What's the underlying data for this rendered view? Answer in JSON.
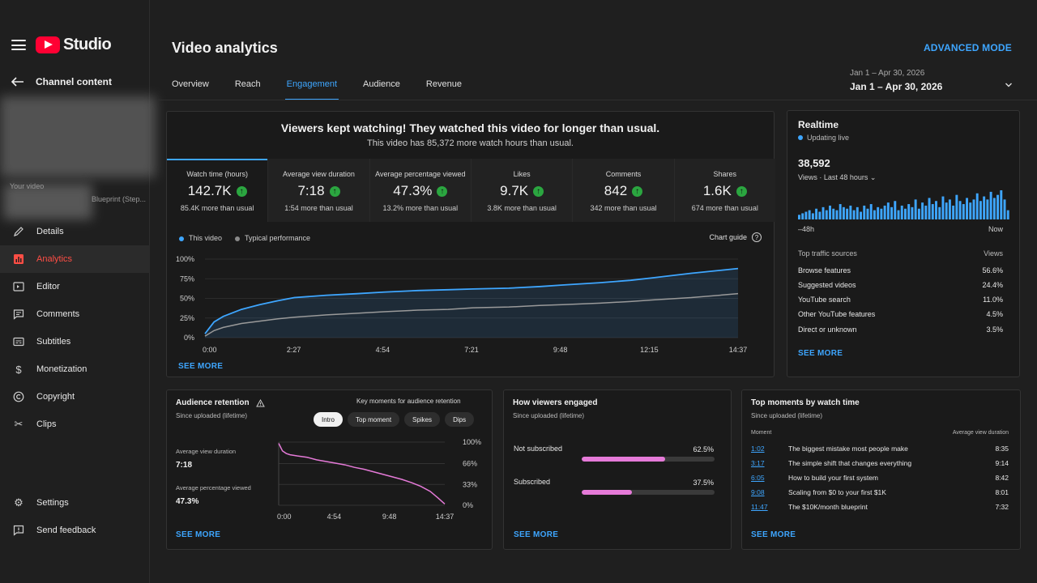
{
  "app": {
    "logo_text": "Studio"
  },
  "sidebar": {
    "back_label": "Channel content",
    "blurred_texts": [
      "Your video",
      "Blueprint (Step..."
    ],
    "items": [
      {
        "label": "Details",
        "icon": "pencil-icon"
      },
      {
        "label": "Analytics",
        "icon": "analytics-icon"
      },
      {
        "label": "Editor",
        "icon": "editor-icon"
      },
      {
        "label": "Comments",
        "icon": "comments-icon"
      },
      {
        "label": "Subtitles",
        "icon": "subtitles-icon"
      },
      {
        "label": "Monetization",
        "icon": "dollar-icon"
      },
      {
        "label": "Copyright",
        "icon": "copyright-icon"
      },
      {
        "label": "Clips",
        "icon": "scissors-icon"
      }
    ],
    "bottom_items": [
      {
        "label": "Settings",
        "icon": "gear-icon"
      },
      {
        "label": "Send feedback",
        "icon": "feedback-icon"
      }
    ]
  },
  "header": {
    "title": "Video analytics",
    "advanced_mode": "ADVANCED MODE",
    "date_small": "Jan 1 – Apr 30, 2026",
    "date_main": "Jan 1 – Apr 30, 2026",
    "tabs": [
      "Overview",
      "Reach",
      "Engagement",
      "Audience",
      "Revenue"
    ],
    "active_tab": "Engagement"
  },
  "main": {
    "headline": "Viewers kept watching! They watched this video for longer than usual.",
    "subline": "This video has 85,372 more watch hours than usual.",
    "metrics": [
      {
        "label": "Watch time (hours)",
        "value": "142.7K",
        "note": "85.4K more than usual"
      },
      {
        "label": "Average view duration",
        "value": "7:18",
        "note": "1:54 more than usual"
      },
      {
        "label": "Average percentage viewed",
        "value": "47.3%",
        "note": "13.2% more than usual"
      },
      {
        "label": "Likes",
        "value": "9.7K",
        "note": "3.8K more than usual"
      },
      {
        "label": "Comments",
        "value": "842",
        "note": "342 more than usual"
      },
      {
        "label": "Shares",
        "value": "1.6K",
        "note": "674 more than usual"
      }
    ],
    "legend_this": "This video",
    "legend_typical": "Typical performance",
    "chart_guide": "Chart guide",
    "see_more": "SEE MORE"
  },
  "realtime": {
    "title": "Realtime",
    "live": "Updating live",
    "count": "38,592",
    "views_label": "Views · Last 48 hours",
    "left_label": "–48h",
    "right_label": "Now",
    "sources_header": "Top traffic sources",
    "views_header": "Views",
    "sources": [
      {
        "name": "Browse features",
        "value": "56.6%"
      },
      {
        "name": "Suggested videos",
        "value": "24.4%"
      },
      {
        "name": "YouTube search",
        "value": "11.0%"
      },
      {
        "name": "Other YouTube features",
        "value": "4.5%"
      },
      {
        "name": "Direct or unknown",
        "value": "3.5%"
      }
    ],
    "bars": [
      3,
      4,
      5,
      6,
      4,
      7,
      5,
      8,
      6,
      9,
      7,
      6,
      10,
      8,
      7,
      9,
      6,
      8,
      5,
      9,
      7,
      10,
      6,
      8,
      7,
      9,
      11,
      8,
      12,
      6,
      9,
      7,
      10,
      8,
      13,
      7,
      11,
      9,
      14,
      10,
      12,
      8,
      15,
      11,
      13,
      9,
      16,
      12,
      10,
      14,
      11,
      13,
      17,
      12,
      15,
      13,
      18,
      14,
      16,
      19,
      13,
      6
    ]
  },
  "retention": {
    "title": "Audience retention",
    "subtitle": "Since uploaded (lifetime)",
    "key_moments_label": "Key moments for audience retention",
    "pills": [
      "Intro",
      "Top moment",
      "Spikes",
      "Dips"
    ],
    "avd_label": "Average view duration",
    "avd_value": "7:18",
    "apv_label": "Average percentage viewed",
    "apv_value": "47.3%",
    "see_more": "SEE MORE"
  },
  "engaged": {
    "title": "How viewers engaged",
    "subtitle": "Since uploaded (lifetime)",
    "rows": [
      {
        "label": "Not subscribed",
        "pct": "62.5%",
        "value": 62.5
      },
      {
        "label": "Subscribed",
        "pct": "37.5%",
        "value": 37.5
      }
    ],
    "see_more": "SEE MORE"
  },
  "moments": {
    "title": "Top moments by watch time",
    "subtitle": "Since uploaded (lifetime)",
    "col_moment": "Moment",
    "col_avd": "Average view duration",
    "rows": [
      {
        "time": "1:02",
        "text": "The biggest mistake most people make",
        "value": "8:35"
      },
      {
        "time": "3:17",
        "text": "The simple shift that changes everything",
        "value": "9:14"
      },
      {
        "time": "6:05",
        "text": "How to build your first system",
        "value": "8:42"
      },
      {
        "time": "9:08",
        "text": "Scaling from $0 to your first $1K",
        "value": "8:01"
      },
      {
        "time": "11:47",
        "text": "The $10K/month blueprint",
        "value": "7:32"
      }
    ],
    "see_more": "SEE MORE"
  },
  "chart_data": [
    {
      "type": "area",
      "x_ticks": [
        "0:00",
        "2:27",
        "4:54",
        "7:21",
        "9:48",
        "12:15",
        "14:37"
      ],
      "y_ticks": [
        "100%",
        "75%",
        "50%",
        "25%",
        "0%"
      ],
      "ylim": [
        0,
        100
      ],
      "x_seconds": [
        0,
        15,
        30,
        60,
        90,
        120,
        147,
        200,
        250,
        294,
        350,
        400,
        441,
        500,
        550,
        588,
        650,
        700,
        735,
        800,
        877
      ],
      "series": [
        {
          "name": "This video",
          "color": "#3ea6ff",
          "values": [
            5,
            20,
            27,
            36,
            42,
            47,
            51,
            54,
            56,
            58,
            60,
            61,
            62,
            63,
            65,
            67,
            70,
            73,
            76,
            82,
            88
          ]
        },
        {
          "name": "Typical performance",
          "color": "#9a9a9a",
          "values": [
            2,
            9,
            13,
            18,
            21,
            24,
            26,
            29,
            31,
            33,
            35,
            36,
            38,
            39,
            41,
            42,
            44,
            46,
            48,
            51,
            56
          ]
        }
      ]
    },
    {
      "type": "line",
      "x_ticks": [
        "0:00",
        "4:54",
        "9:48",
        "14:37"
      ],
      "y_ticks": [
        "100%",
        "66%",
        "33%",
        "0%"
      ],
      "ylim": [
        0,
        100
      ],
      "x_seconds": [
        0,
        10,
        20,
        40,
        60,
        100,
        150,
        200,
        294,
        350,
        400,
        450,
        500,
        588,
        650,
        700,
        750,
        800,
        840,
        877
      ],
      "series": [
        {
          "name": "This video",
          "color": "#e57ad8",
          "values": [
            98,
            92,
            86,
            82,
            80,
            78,
            76,
            72,
            67,
            64,
            60,
            57,
            53,
            46,
            41,
            36,
            30,
            22,
            12,
            2
          ]
        }
      ]
    }
  ]
}
